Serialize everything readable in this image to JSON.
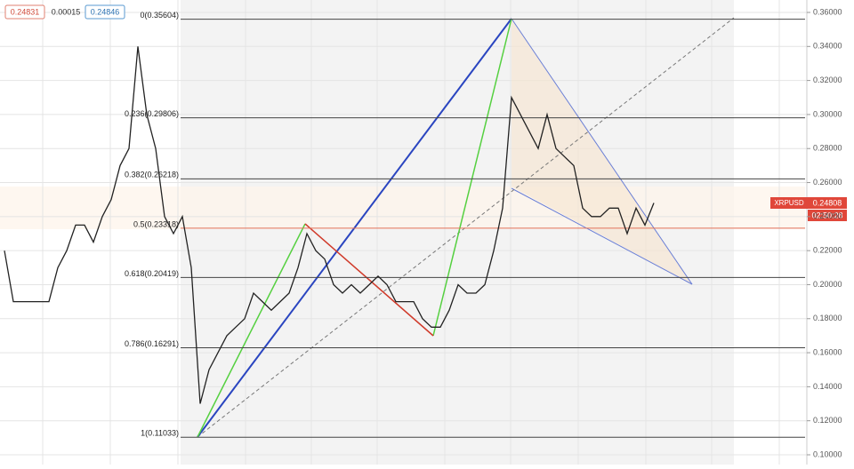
{
  "chart_data": {
    "type": "line",
    "symbol": "XRPUSD",
    "last_price": "0.24808",
    "countdown": "02:50:28",
    "bid": "0.24831",
    "spread": "0.00015",
    "ask": "0.24846",
    "color": "#222222",
    "ylim": [
      0.1,
      0.36
    ],
    "yticks": [
      {
        "value": 0.1,
        "label": "0.10000"
      },
      {
        "value": 0.12,
        "label": "0.12000"
      },
      {
        "value": 0.14,
        "label": "0.14000"
      },
      {
        "value": 0.16,
        "label": "0.16000"
      },
      {
        "value": 0.18,
        "label": "0.18000"
      },
      {
        "value": 0.2,
        "label": "0.20000"
      },
      {
        "value": 0.22,
        "label": "0.22000"
      },
      {
        "value": 0.24,
        "label": "0.24000"
      },
      {
        "value": 0.26,
        "label": "0.26000"
      },
      {
        "value": 0.28,
        "label": "0.28000"
      },
      {
        "value": 0.3,
        "label": "0.30000"
      },
      {
        "value": 0.32,
        "label": "0.32000"
      },
      {
        "value": 0.34,
        "label": "0.34000"
      },
      {
        "value": 0.36,
        "label": "0.36000"
      }
    ],
    "fib_levels": [
      {
        "value": 0.35604,
        "label": "0(0.35604)",
        "color": "#444444"
      },
      {
        "value": 0.29806,
        "label": "0.236(0.29806)",
        "color": "#444444"
      },
      {
        "value": 0.26218,
        "label": "0.382(0.26218)",
        "color": "#444444"
      },
      {
        "value": 0.23318,
        "label": "0.5(0.23318)",
        "color": "#e0705a"
      },
      {
        "value": 0.20419,
        "label": "0.618(0.20419)",
        "color": "#444444"
      },
      {
        "value": 0.16291,
        "label": "0.786(0.16291)",
        "color": "#444444"
      },
      {
        "value": 0.11033,
        "label": "1(0.11033)",
        "color": "#444444"
      }
    ],
    "values": [
      0.22,
      0.19,
      0.19,
      0.19,
      0.19,
      0.19,
      0.21,
      0.22,
      0.235,
      0.235,
      0.225,
      0.24,
      0.25,
      0.27,
      0.28,
      0.34,
      0.3,
      0.28,
      0.24,
      0.23,
      0.24,
      0.21,
      0.13,
      0.15,
      0.16,
      0.17,
      0.175,
      0.18,
      0.195,
      0.19,
      0.185,
      0.19,
      0.195,
      0.21,
      0.23,
      0.22,
      0.215,
      0.2,
      0.195,
      0.2,
      0.195,
      0.2,
      0.205,
      0.2,
      0.19,
      0.19,
      0.19,
      0.18,
      0.175,
      0.175,
      0.185,
      0.2,
      0.195,
      0.195,
      0.2,
      0.22,
      0.245,
      0.31,
      0.3,
      0.29,
      0.28,
      0.3,
      0.28,
      0.275,
      0.27,
      0.245,
      0.24,
      0.24,
      0.245,
      0.245,
      0.23,
      0.245,
      0.235,
      0.248
    ]
  }
}
